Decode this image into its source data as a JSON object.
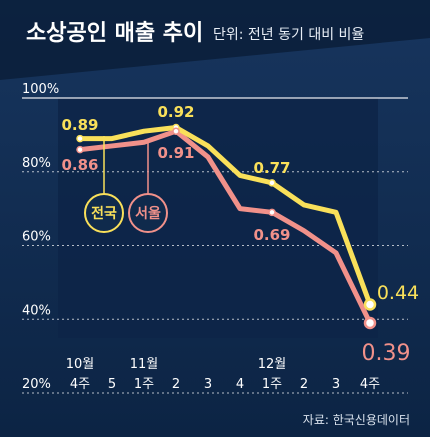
{
  "chart_data": {
    "type": "line",
    "title": "소상공인 매출 추이",
    "subtitle": "단위: 전년 동기 대비 비율",
    "source": "자료: 한국신용데이터",
    "yaxis": {
      "ticks": [
        0.2,
        0.4,
        0.6,
        0.8,
        1.0
      ],
      "tick_labels": [
        "20%",
        "40%",
        "60%",
        "80%",
        "100%"
      ],
      "ylim": [
        0.2,
        1.0
      ],
      "grid": "dotted"
    },
    "x_month_labels": [
      "10월",
      "11월",
      "12월"
    ],
    "x_week_labels": [
      "4주",
      "5",
      "1주",
      "2",
      "3",
      "4",
      "1주",
      "2",
      "3",
      "4주"
    ],
    "series": [
      {
        "name": "전국",
        "color": "#f9e05a",
        "values": [
          0.89,
          0.89,
          0.91,
          0.92,
          0.87,
          0.79,
          0.77,
          0.71,
          0.69,
          0.44
        ],
        "labeled_points": [
          {
            "index": 0,
            "text": "0.89"
          },
          {
            "index": 3,
            "text": "0.92"
          },
          {
            "index": 6,
            "text": "0.77"
          },
          {
            "index": 9,
            "text": "0.44"
          }
        ]
      },
      {
        "name": "서울",
        "color": "#f1918a",
        "values": [
          0.86,
          0.87,
          0.88,
          0.91,
          0.84,
          0.7,
          0.69,
          0.64,
          0.58,
          0.39
        ],
        "labeled_points": [
          {
            "index": 0,
            "text": "0.86"
          },
          {
            "index": 3,
            "text": "0.91"
          },
          {
            "index": 6,
            "text": "0.69"
          },
          {
            "index": 9,
            "text": "0.39"
          }
        ]
      }
    ]
  }
}
